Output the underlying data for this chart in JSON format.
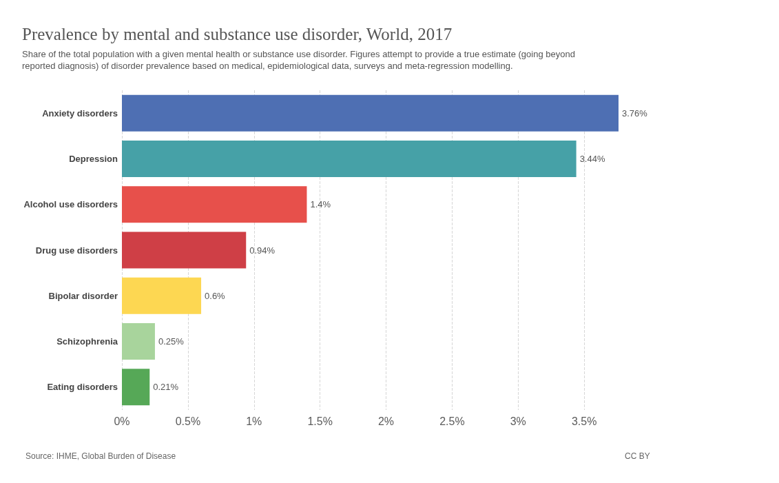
{
  "chart_data": {
    "type": "bar",
    "orientation": "horizontal",
    "title": "Prevalence by mental and substance use disorder, World, 2017",
    "subtitle": "Share of the total population with a given mental health or substance use disorder. Figures attempt to provide a true estimate (going beyond reported diagnosis) of disorder prevalence based on medical, epidemiological data, surveys and meta-regression modelling.",
    "categories": [
      "Anxiety disorders",
      "Depression",
      "Alcohol use disorders",
      "Drug use disorders",
      "Bipolar disorder",
      "Schizophrenia",
      "Eating disorders"
    ],
    "values": [
      3.76,
      3.44,
      1.4,
      0.94,
      0.6,
      0.25,
      0.21
    ],
    "value_labels": [
      "3.76%",
      "3.44%",
      "1.4%",
      "0.94%",
      "0.6%",
      "0.25%",
      "0.21%"
    ],
    "colors": [
      "#4e6fb3",
      "#46a1a7",
      "#e7504b",
      "#cf3f46",
      "#fdd752",
      "#a8d49c",
      "#56a857"
    ],
    "xlim": [
      0,
      3.76
    ],
    "xticks": [
      {
        "value": 0,
        "label": "0%"
      },
      {
        "value": 0.5,
        "label": "0.5%"
      },
      {
        "value": 1,
        "label": "1%"
      },
      {
        "value": 1.5,
        "label": "1.5%"
      },
      {
        "value": 2,
        "label": "2%"
      },
      {
        "value": 2.5,
        "label": "2.5%"
      },
      {
        "value": 3,
        "label": "3%"
      },
      {
        "value": 3.5,
        "label": "3.5%"
      }
    ],
    "grid": "x",
    "annotations": [
      "Source: IHME, Global Burden of Disease",
      "CC BY"
    ]
  }
}
